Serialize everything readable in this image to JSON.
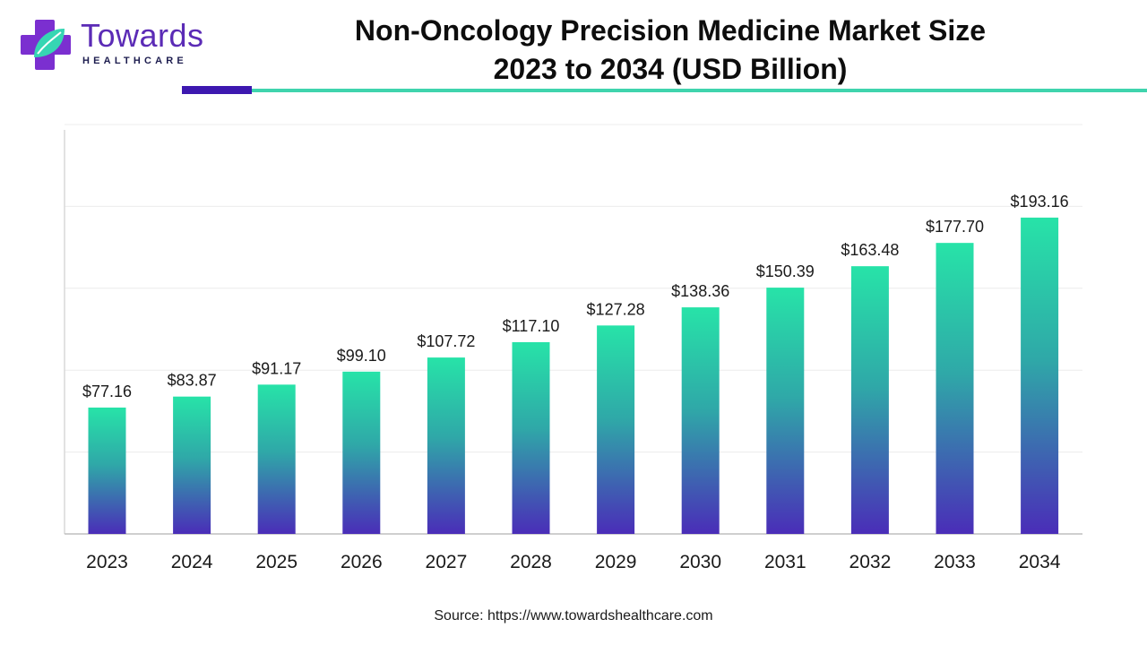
{
  "brand": {
    "name": "Towards",
    "subtitle": "HEALTHCARE",
    "primary_color": "#5b2bb6",
    "accent_color": "#3fd4ad"
  },
  "header": {
    "title_line1": "Non-Oncology Precision Medicine Market Size",
    "title_line2": "2023 to 2034 (USD Billion)"
  },
  "source": "Source: https://www.towardshealthcare.com",
  "chart_data": {
    "type": "bar",
    "title": "Non-Oncology Precision Medicine Market Size 2023 to 2034 (USD Billion)",
    "xlabel": "",
    "ylabel": "",
    "categories": [
      "2023",
      "2024",
      "2025",
      "2026",
      "2027",
      "2028",
      "2029",
      "2030",
      "2031",
      "2032",
      "2033",
      "2034"
    ],
    "values": [
      77.16,
      83.87,
      91.17,
      99.1,
      107.72,
      117.1,
      127.28,
      138.36,
      150.39,
      163.48,
      177.7,
      193.16
    ],
    "labels": [
      "$77.16",
      "$83.87",
      "$91.17",
      "$99.10",
      "$107.72",
      "$117.10",
      "$127.28",
      "$138.36",
      "$150.39",
      "$163.48",
      "$177.70",
      "$193.16"
    ],
    "ylim": [
      0,
      250
    ],
    "grid": true,
    "bar_gradient": [
      "#27e3a8",
      "#4a2db8"
    ]
  }
}
